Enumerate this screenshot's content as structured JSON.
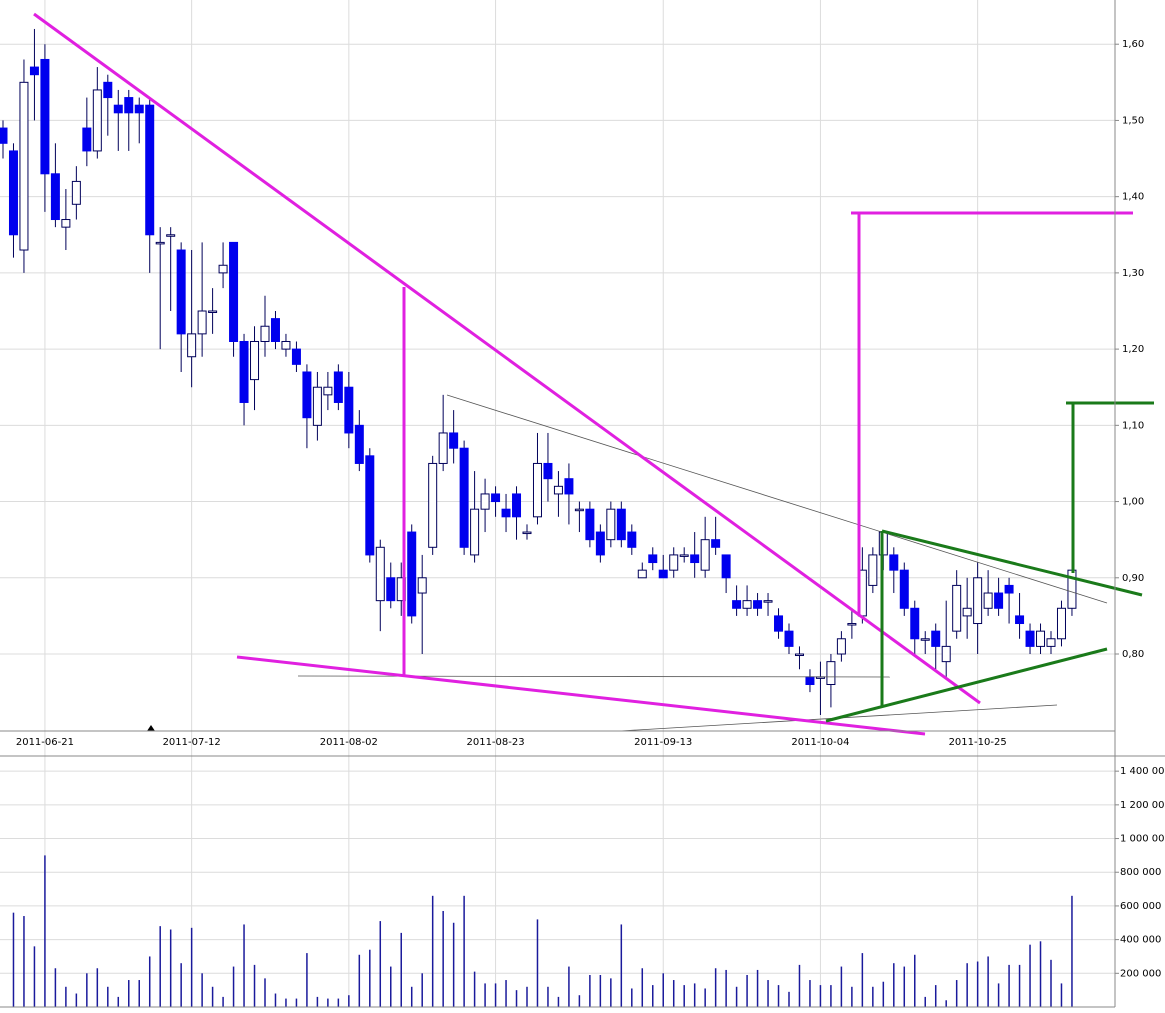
{
  "chart_data": [
    {
      "type": "candlestick",
      "categories": [
        null,
        null,
        null,
        null,
        "2011-06-21",
        null,
        null,
        null,
        null,
        null,
        null,
        null,
        null,
        null,
        null,
        null,
        null,
        null,
        "2011-07-12",
        null,
        null,
        null,
        null,
        null,
        null,
        null,
        null,
        null,
        null,
        null,
        null,
        null,
        null,
        "2011-08-02",
        null,
        null,
        null,
        null,
        null,
        null,
        null,
        null,
        null,
        null,
        null,
        null,
        null,
        "2011-08-23",
        null,
        null,
        null,
        null,
        null,
        null,
        null,
        null,
        null,
        null,
        null,
        null,
        null,
        null,
        null,
        "2011-09-13",
        null,
        null,
        null,
        null,
        null,
        null,
        null,
        null,
        null,
        null,
        null,
        null,
        null,
        null,
        "2011-10-04",
        null,
        null,
        null,
        null,
        null,
        null,
        null,
        null,
        null,
        null,
        null,
        null,
        null,
        null,
        "2011-10-25",
        null,
        null,
        null,
        null,
        null,
        null,
        null,
        null,
        null
      ],
      "open": [
        1.49,
        1.46,
        1.33,
        1.57,
        1.58,
        1.43,
        1.36,
        1.39,
        1.49,
        1.46,
        1.55,
        1.52,
        1.53,
        1.52,
        1.52,
        1.34,
        1.35,
        1.33,
        1.19,
        1.22,
        1.25,
        1.3,
        1.34,
        1.21,
        1.16,
        1.21,
        1.24,
        1.2,
        1.2,
        1.17,
        1.1,
        1.14,
        1.17,
        1.15,
        1.1,
        1.06,
        0.87,
        0.9,
        0.87,
        0.96,
        0.88,
        0.94,
        1.05,
        1.09,
        1.07,
        0.93,
        0.99,
        1.01,
        0.99,
        1.01,
        0.96,
        0.98,
        1.05,
        1.01,
        1.03,
        0.99,
        0.99,
        0.96,
        0.95,
        0.99,
        0.96,
        0.9,
        0.93,
        0.91,
        0.91,
        0.93,
        0.93,
        0.91,
        0.95,
        0.93,
        0.87,
        0.86,
        0.87,
        0.87,
        0.85,
        0.83,
        0.8,
        0.77,
        0.77,
        0.76,
        0.8,
        0.84,
        0.85,
        0.89,
        0.93,
        0.93,
        0.91,
        0.86,
        0.82,
        0.83,
        0.79,
        0.83,
        0.85,
        0.84,
        0.86,
        0.88,
        0.89,
        0.85,
        0.83,
        0.81,
        0.81,
        0.82,
        0.86
      ],
      "high": [
        1.5,
        1.47,
        1.58,
        1.62,
        1.6,
        1.47,
        1.41,
        1.44,
        1.53,
        1.57,
        1.56,
        1.54,
        1.54,
        1.53,
        1.53,
        1.36,
        1.36,
        1.34,
        1.33,
        1.34,
        1.28,
        1.34,
        1.34,
        1.22,
        1.23,
        1.27,
        1.25,
        1.22,
        1.21,
        1.18,
        1.17,
        1.17,
        1.18,
        1.17,
        1.12,
        1.07,
        0.95,
        0.92,
        0.92,
        0.97,
        0.93,
        1.06,
        1.14,
        1.12,
        1.08,
        1.04,
        1.03,
        1.02,
        1.01,
        1.02,
        0.97,
        1.09,
        1.09,
        1.04,
        1.05,
        1.0,
        1.0,
        0.97,
        1.0,
        1.0,
        0.97,
        0.92,
        0.94,
        0.93,
        0.94,
        0.94,
        0.96,
        0.98,
        0.98,
        0.93,
        0.89,
        0.89,
        0.88,
        0.88,
        0.86,
        0.84,
        0.81,
        0.78,
        0.79,
        0.8,
        0.83,
        0.86,
        0.94,
        0.94,
        0.96,
        0.94,
        0.92,
        0.87,
        0.83,
        0.84,
        0.87,
        0.91,
        0.9,
        0.92,
        0.91,
        0.9,
        0.9,
        0.88,
        0.84,
        0.84,
        0.83,
        0.87,
        0.91
      ],
      "low": [
        1.45,
        1.32,
        1.3,
        1.5,
        1.38,
        1.36,
        1.33,
        1.37,
        1.44,
        1.45,
        1.48,
        1.46,
        1.46,
        1.47,
        1.3,
        1.2,
        1.25,
        1.17,
        1.15,
        1.19,
        1.22,
        1.28,
        1.19,
        1.1,
        1.12,
        1.19,
        1.2,
        1.19,
        1.17,
        1.07,
        1.08,
        1.12,
        1.12,
        1.07,
        1.04,
        0.92,
        0.83,
        0.86,
        0.85,
        0.84,
        0.8,
        0.93,
        1.04,
        1.05,
        0.93,
        0.92,
        0.96,
        0.98,
        0.96,
        0.95,
        0.95,
        0.97,
        1.0,
        0.98,
        0.97,
        0.96,
        0.94,
        0.92,
        0.94,
        0.94,
        0.93,
        0.9,
        0.91,
        0.9,
        0.9,
        0.92,
        0.9,
        0.9,
        0.93,
        0.88,
        0.85,
        0.85,
        0.85,
        0.85,
        0.82,
        0.8,
        0.78,
        0.75,
        0.72,
        0.73,
        0.79,
        0.82,
        0.84,
        0.88,
        0.91,
        0.88,
        0.85,
        0.8,
        0.8,
        0.78,
        0.77,
        0.82,
        0.82,
        0.8,
        0.85,
        0.85,
        0.84,
        0.82,
        0.8,
        0.8,
        0.8,
        0.81,
        0.85
      ],
      "close": [
        1.47,
        1.35,
        1.55,
        1.56,
        1.43,
        1.37,
        1.37,
        1.42,
        1.46,
        1.54,
        1.53,
        1.51,
        1.51,
        1.51,
        1.35,
        1.34,
        1.35,
        1.22,
        1.22,
        1.25,
        1.25,
        1.31,
        1.21,
        1.13,
        1.21,
        1.23,
        1.21,
        1.21,
        1.18,
        1.11,
        1.15,
        1.15,
        1.13,
        1.09,
        1.05,
        0.93,
        0.94,
        0.87,
        0.9,
        0.85,
        0.9,
        1.05,
        1.09,
        1.07,
        0.94,
        0.99,
        1.01,
        1.0,
        0.98,
        0.98,
        0.96,
        1.05,
        1.03,
        1.02,
        1.01,
        0.99,
        0.95,
        0.93,
        0.99,
        0.95,
        0.94,
        0.91,
        0.92,
        0.9,
        0.93,
        0.93,
        0.92,
        0.95,
        0.94,
        0.9,
        0.86,
        0.87,
        0.86,
        0.87,
        0.83,
        0.81,
        0.8,
        0.76,
        0.77,
        0.79,
        0.82,
        0.84,
        0.91,
        0.93,
        0.96,
        0.91,
        0.86,
        0.82,
        0.82,
        0.81,
        0.81,
        0.89,
        0.86,
        0.9,
        0.88,
        0.86,
        0.88,
        0.84,
        0.81,
        0.83,
        0.82,
        0.86,
        0.91
      ],
      "up_color": "#ffffff",
      "down_color": "#0000ee",
      "ylim": [
        0.699,
        1.658
      ],
      "yticks": [
        {
          "value": 0.8,
          "label": "0,80"
        },
        {
          "value": 0.9,
          "label": "0,90"
        },
        {
          "value": 1.0,
          "label": "1,00"
        },
        {
          "value": 1.1,
          "label": "1,10"
        },
        {
          "value": 1.2,
          "label": "1,20"
        },
        {
          "value": 1.3,
          "label": "1,30"
        },
        {
          "value": 1.4,
          "label": "1,40"
        },
        {
          "value": 1.5,
          "label": "1,50"
        },
        {
          "value": 1.6,
          "label": "1,60"
        }
      ],
      "grid": true
    },
    {
      "type": "bar",
      "color": "#1a1a9c",
      "values": [
        null,
        560000,
        540000,
        360000,
        900000,
        230000,
        120000,
        80000,
        200000,
        230000,
        120000,
        60000,
        160000,
        160000,
        300000,
        480000,
        460000,
        260000,
        470000,
        200000,
        120000,
        60000,
        240000,
        490000,
        250000,
        170000,
        80000,
        50000,
        50000,
        320000,
        60000,
        50000,
        50000,
        70000,
        310000,
        340000,
        510000,
        240000,
        440000,
        120000,
        200000,
        660000,
        570000,
        500000,
        660000,
        210000,
        140000,
        140000,
        160000,
        100000,
        120000,
        520000,
        120000,
        60000,
        240000,
        70000,
        190000,
        190000,
        170000,
        490000,
        110000,
        230000,
        130000,
        200000,
        160000,
        130000,
        140000,
        110000,
        230000,
        220000,
        120000,
        190000,
        220000,
        160000,
        130000,
        90000,
        250000,
        160000,
        130000,
        130000,
        240000,
        120000,
        320000,
        120000,
        150000,
        260000,
        240000,
        310000,
        60000,
        130000,
        40000,
        160000,
        260000,
        270000,
        300000,
        140000,
        250000,
        250000,
        370000,
        390000,
        280000,
        140000,
        660000
      ],
      "ylim": [
        0,
        1490000
      ],
      "yticks": [
        {
          "value": 200000,
          "label": "200 000"
        },
        {
          "value": 400000,
          "label": "400 000"
        },
        {
          "value": 600000,
          "label": "600 000"
        },
        {
          "value": 800000,
          "label": "800 000"
        },
        {
          "value": 1000000,
          "label": "1 000 000"
        },
        {
          "value": 1200000,
          "label": "1 200 000"
        },
        {
          "value": 1400000,
          "label": "1 400 000"
        }
      ],
      "grid": true
    }
  ]
}
